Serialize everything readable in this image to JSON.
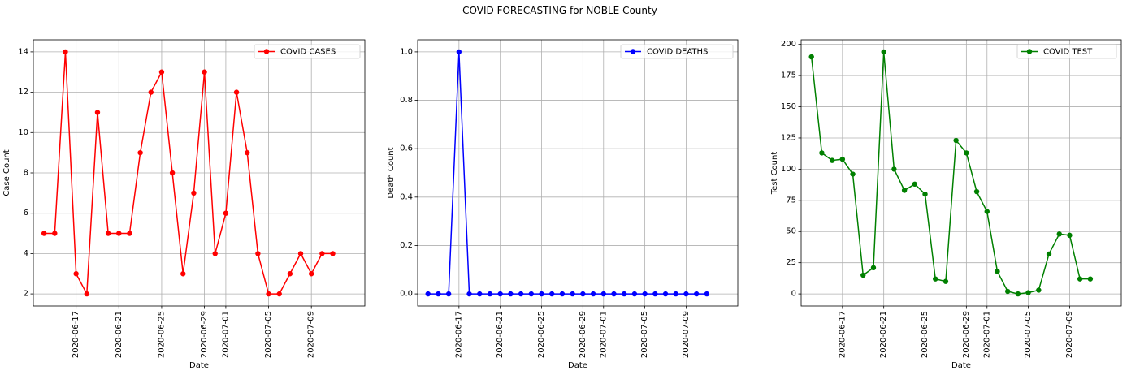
{
  "suptitle": "COVID FORECASTING for NOBLE County",
  "chart_data": [
    {
      "type": "line",
      "color": "#ff0000",
      "xlabel": "Date",
      "ylabel": "Case Count",
      "legend_loc": "upper-right",
      "grid": true,
      "x_ticks": [
        "2020-06-17",
        "2020-06-21",
        "2020-06-25",
        "2020-06-29",
        "2020-07-01",
        "2020-07-05",
        "2020-07-09"
      ],
      "y_ticks": [
        2,
        4,
        6,
        8,
        10,
        12,
        14
      ],
      "ylim": [
        1.4,
        14.6
      ],
      "xlim": [
        "2020-06-13",
        "2020-07-14"
      ],
      "series": [
        {
          "name": "COVID CASES",
          "x": [
            "2020-06-14",
            "2020-06-15",
            "2020-06-16",
            "2020-06-17",
            "2020-06-18",
            "2020-06-19",
            "2020-06-20",
            "2020-06-21",
            "2020-06-22",
            "2020-06-23",
            "2020-06-24",
            "2020-06-25",
            "2020-06-26",
            "2020-06-27",
            "2020-06-28",
            "2020-06-29",
            "2020-06-30",
            "2020-07-01",
            "2020-07-02",
            "2020-07-03",
            "2020-07-04",
            "2020-07-05",
            "2020-07-06",
            "2020-07-07",
            "2020-07-08",
            "2020-07-09",
            "2020-07-10",
            "2020-07-11"
          ],
          "y": [
            5,
            5,
            14,
            3,
            2,
            11,
            5,
            5,
            5,
            9,
            12,
            13,
            8,
            3,
            7,
            13,
            4,
            6,
            12,
            9,
            4,
            2,
            2,
            3,
            4,
            3,
            4,
            4
          ]
        }
      ]
    },
    {
      "type": "line",
      "color": "#0000ff",
      "xlabel": "Date",
      "ylabel": "Death Count",
      "legend_loc": "upper-right",
      "grid": true,
      "x_ticks": [
        "2020-06-17",
        "2020-06-21",
        "2020-06-25",
        "2020-06-29",
        "2020-07-01",
        "2020-07-05",
        "2020-07-09"
      ],
      "y_ticks": [
        "0.0",
        "0.2",
        "0.4",
        "0.6",
        "0.8",
        "1.0"
      ],
      "ylim": [
        -0.05,
        1.05
      ],
      "xlim": [
        "2020-06-13",
        "2020-07-14"
      ],
      "series": [
        {
          "name": "COVID DEATHS",
          "x": [
            "2020-06-14",
            "2020-06-15",
            "2020-06-16",
            "2020-06-17",
            "2020-06-18",
            "2020-06-19",
            "2020-06-20",
            "2020-06-21",
            "2020-06-22",
            "2020-06-23",
            "2020-06-24",
            "2020-06-25",
            "2020-06-26",
            "2020-06-27",
            "2020-06-28",
            "2020-06-29",
            "2020-06-30",
            "2020-07-01",
            "2020-07-02",
            "2020-07-03",
            "2020-07-04",
            "2020-07-05",
            "2020-07-06",
            "2020-07-07",
            "2020-07-08",
            "2020-07-09",
            "2020-07-10",
            "2020-07-11"
          ],
          "y": [
            0,
            0,
            0,
            1,
            0,
            0,
            0,
            0,
            0,
            0,
            0,
            0,
            0,
            0,
            0,
            0,
            0,
            0,
            0,
            0,
            0,
            0,
            0,
            0,
            0,
            0,
            0,
            0
          ]
        }
      ]
    },
    {
      "type": "line",
      "color": "#008000",
      "xlabel": "Date",
      "ylabel": "Test Count",
      "legend_loc": "upper-right",
      "grid": true,
      "x_ticks": [
        "2020-06-17",
        "2020-06-21",
        "2020-06-25",
        "2020-06-29",
        "2020-07-01",
        "2020-07-05",
        "2020-07-09"
      ],
      "y_ticks": [
        0,
        25,
        50,
        75,
        100,
        125,
        150,
        175,
        200
      ],
      "ylim": [
        -9.7,
        203.7
      ],
      "xlim": [
        "2020-06-13",
        "2020-07-14"
      ],
      "series": [
        {
          "name": "COVID TEST",
          "x": [
            "2020-06-14",
            "2020-06-15",
            "2020-06-16",
            "2020-06-17",
            "2020-06-18",
            "2020-06-19",
            "2020-06-20",
            "2020-06-21",
            "2020-06-22",
            "2020-06-23",
            "2020-06-24",
            "2020-06-25",
            "2020-06-26",
            "2020-06-27",
            "2020-06-28",
            "2020-06-29",
            "2020-06-30",
            "2020-07-01",
            "2020-07-02",
            "2020-07-03",
            "2020-07-04",
            "2020-07-05",
            "2020-07-06",
            "2020-07-07",
            "2020-07-08",
            "2020-07-09",
            "2020-07-10",
            "2020-07-11"
          ],
          "y": [
            190,
            113,
            107,
            108,
            96,
            15,
            21,
            194,
            100,
            83,
            88,
            80,
            12,
            10,
            123,
            113,
            82,
            66,
            18,
            2,
            0,
            1,
            3,
            32,
            48,
            47,
            12,
            12
          ]
        }
      ]
    }
  ]
}
